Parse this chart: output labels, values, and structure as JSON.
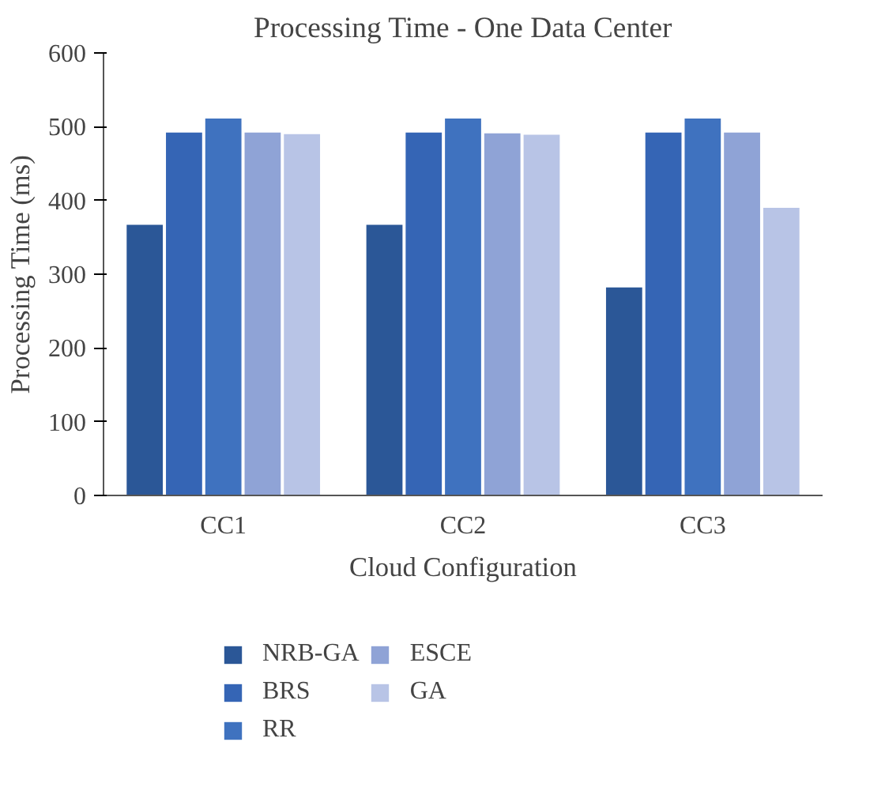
{
  "chart_data": {
    "type": "bar",
    "title": "Processing Time - One Data Center",
    "xlabel": "Cloud Configuration",
    "ylabel": "Processing Time (ms)",
    "categories": [
      "CC1",
      "CC2",
      "CC3"
    ],
    "ylim": [
      0,
      600
    ],
    "yticks": [
      0,
      100,
      200,
      300,
      400,
      500,
      600
    ],
    "grid": false,
    "legend": "bottom",
    "series": [
      {
        "name": "NRB-GA",
        "color": "#2b5797",
        "values": [
          367,
          367,
          282
        ]
      },
      {
        "name": "BRS",
        "color": "#3565b5",
        "values": [
          492,
          492,
          492
        ]
      },
      {
        "name": "RR",
        "color": "#3f72bf",
        "values": [
          511,
          511,
          511
        ]
      },
      {
        "name": "ESCE",
        "color": "#8fa3d6",
        "values": [
          492,
          491,
          492
        ]
      },
      {
        "name": "GA",
        "color": "#b8c4e6",
        "values": [
          490,
          489,
          390
        ]
      }
    ]
  }
}
